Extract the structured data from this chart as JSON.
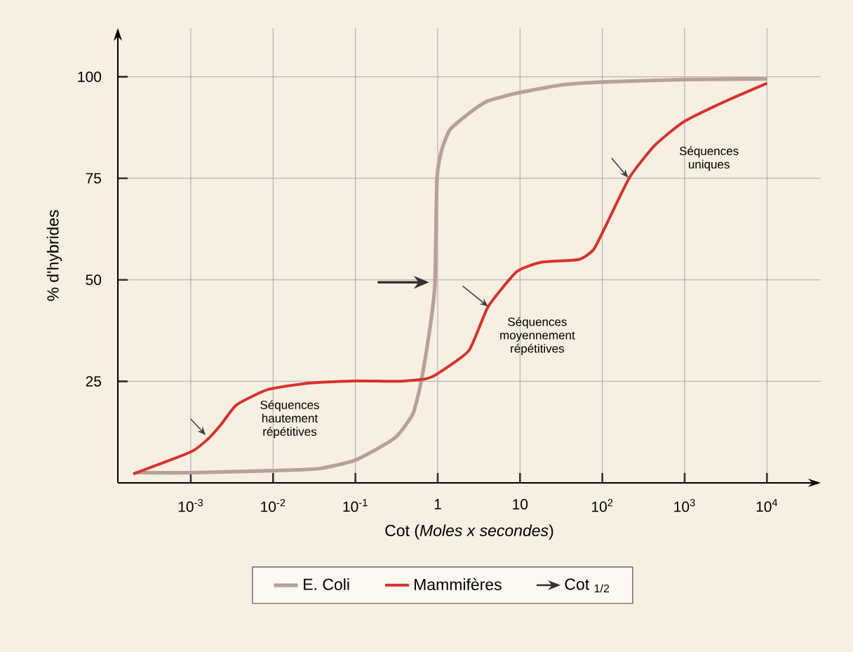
{
  "chart_data": {
    "type": "line",
    "xlabel": "Cot (*Moles x secondes*)",
    "ylabel": "% d'hybrides",
    "log": "x",
    "xlim": [
      0.00013,
      45000
    ],
    "ylim": [
      0,
      112
    ],
    "xticks": [
      {
        "value": 0.001,
        "label": "10$^{-3}$"
      },
      {
        "value": 0.01,
        "label": "10$^{-2}$"
      },
      {
        "value": 0.1,
        "label": "10$^{-1}$"
      },
      {
        "value": 1,
        "label": "1"
      },
      {
        "value": 10,
        "label": "10"
      },
      {
        "value": 100,
        "label": "10$^{2}$"
      },
      {
        "value": 1000,
        "label": "10$^{3}$"
      },
      {
        "value": 10000,
        "label": "10$^{4}$"
      }
    ],
    "yticks": [
      25,
      50,
      75,
      100
    ],
    "grid": true,
    "legend": "bottom",
    "marker": "none",
    "line_style": "solid",
    "series": [
      {
        "name": "E. Coli",
        "color": "#b8a09a",
        "x": [
          0.00021,
          0.001,
          0.01,
          0.036,
          0.1,
          0.3,
          0.5,
          0.63,
          0.79,
          0.89,
          0.93,
          0.98,
          1.12,
          1.41,
          2.4,
          4,
          9.3,
          32,
          100,
          1000,
          10000
        ],
        "values": [
          2.5,
          2.5,
          3,
          3.5,
          5.6,
          11,
          17,
          25,
          37,
          45,
          50,
          75,
          82,
          87,
          91,
          94,
          96,
          98,
          98.7,
          99.3,
          99.5
        ]
      },
      {
        "name": "Mammifères",
        "color": "#d8312c",
        "x": [
          0.0002,
          0.001,
          0.0016,
          0.0023,
          0.0036,
          0.0087,
          0.028,
          0.1,
          0.35,
          0.71,
          1,
          2.4,
          4.1,
          9.1,
          18,
          52,
          78,
          107,
          214,
          427,
          955,
          3000,
          10000
        ],
        "values": [
          2.2,
          7.6,
          10.7,
          14.2,
          19.2,
          23,
          24.6,
          25.1,
          25,
          25.6,
          26.9,
          32.6,
          43.4,
          52,
          54.3,
          55,
          57.4,
          62.8,
          75.2,
          83,
          88.8,
          93.8,
          98.4
        ]
      }
    ],
    "annotations": [
      "Séquences hautement répétitives",
      {
        "text": "Séquences moyennement répétitives",
        "x": 4.1,
        "y": 43.4
      },
      "Séquences uniques",
      "Cot $_{1/2}$"
    ]
  }
}
